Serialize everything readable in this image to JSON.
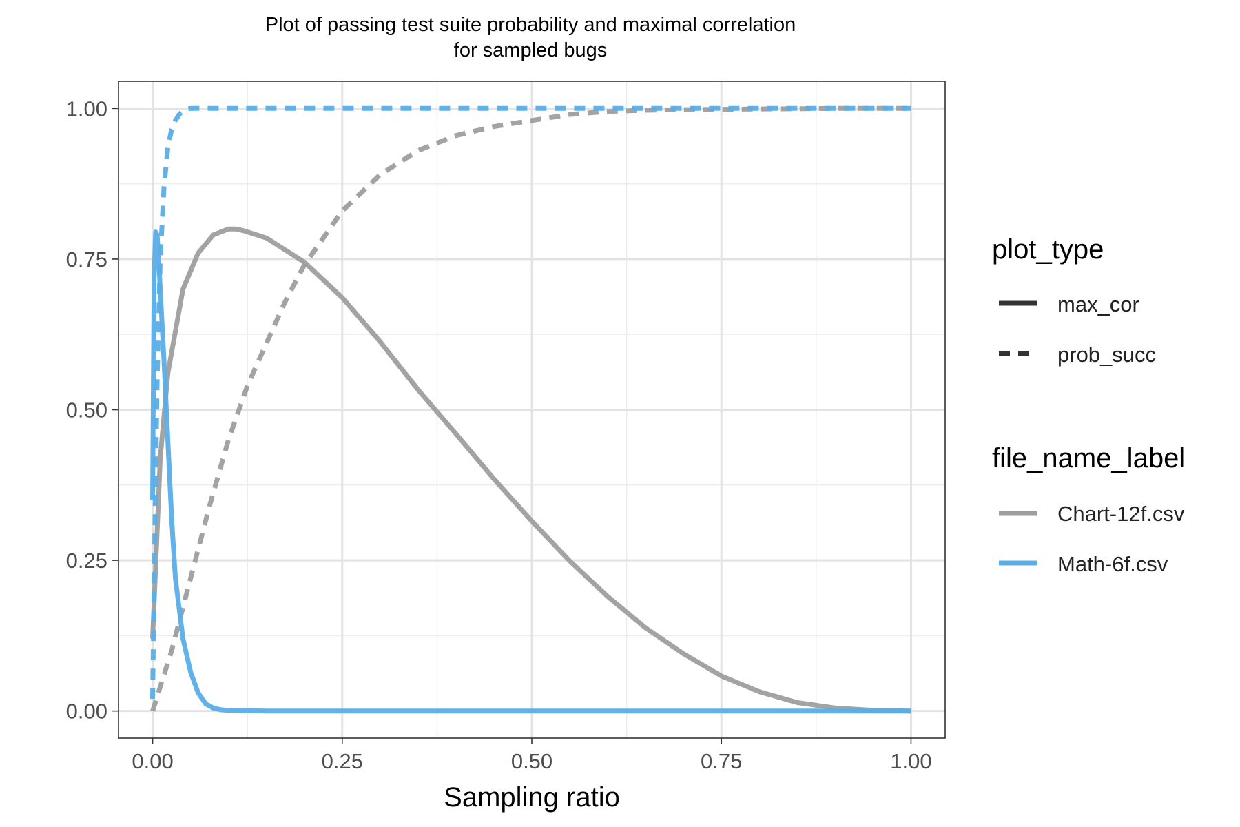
{
  "chart_data": {
    "type": "line",
    "title": "Plot of passing test suite probability and maximal correlation",
    "subtitle": "for sampled bugs",
    "xlabel": "Sampling ratio",
    "ylabel": "",
    "xlim": [
      0,
      1
    ],
    "ylim": [
      0,
      1
    ],
    "x_ticks": [
      "0.00",
      "0.25",
      "0.50",
      "0.75",
      "1.00"
    ],
    "y_ticks": [
      "0.00",
      "0.25",
      "0.50",
      "0.75",
      "1.00"
    ],
    "grid": true,
    "legend_placement": "right",
    "legends": [
      {
        "title": "plot_type",
        "entries": [
          {
            "label": "max_cor",
            "style": "solid"
          },
          {
            "label": "prob_succ",
            "style": "dashed"
          }
        ]
      },
      {
        "title": "file_name_label",
        "entries": [
          {
            "label": "Chart-12f.csv",
            "color": "#9e9e9e"
          },
          {
            "label": "Math-6f.csv",
            "color": "#5aaee8"
          }
        ]
      }
    ],
    "series": [
      {
        "name": "Chart-12f.csv",
        "plot_type": "max_cor",
        "color": "#9e9e9e",
        "style": "solid",
        "x": [
          0,
          0.01,
          0.02,
          0.04,
          0.06,
          0.08,
          0.1,
          0.11,
          0.12,
          0.15,
          0.2,
          0.25,
          0.3,
          0.35,
          0.4,
          0.45,
          0.5,
          0.55,
          0.6,
          0.65,
          0.7,
          0.75,
          0.8,
          0.85,
          0.9,
          0.95,
          1.0
        ],
        "y": [
          0.12,
          0.42,
          0.56,
          0.7,
          0.76,
          0.79,
          0.8,
          0.8,
          0.797,
          0.785,
          0.745,
          0.686,
          0.613,
          0.533,
          0.46,
          0.385,
          0.315,
          0.249,
          0.19,
          0.138,
          0.095,
          0.058,
          0.032,
          0.014,
          0.005,
          0.001,
          0.0
        ]
      },
      {
        "name": "Chart-12f.csv",
        "plot_type": "prob_succ",
        "color": "#9e9e9e",
        "style": "dashed",
        "x": [
          0,
          0.025,
          0.05,
          0.075,
          0.1,
          0.125,
          0.15,
          0.175,
          0.2,
          0.25,
          0.3,
          0.35,
          0.4,
          0.45,
          0.5,
          0.55,
          0.6,
          0.65,
          0.7,
          0.8,
          0.9,
          1.0
        ],
        "y": [
          0.0,
          0.1,
          0.22,
          0.34,
          0.45,
          0.54,
          0.61,
          0.68,
          0.74,
          0.83,
          0.89,
          0.93,
          0.955,
          0.97,
          0.98,
          0.99,
          0.995,
          0.997,
          0.998,
          0.999,
          1.0,
          1.0
        ]
      },
      {
        "name": "Math-6f.csv",
        "plot_type": "max_cor",
        "color": "#5aaee8",
        "style": "solid",
        "x": [
          0,
          0.002,
          0.004,
          0.006,
          0.008,
          0.01,
          0.015,
          0.02,
          0.025,
          0.03,
          0.04,
          0.05,
          0.06,
          0.07,
          0.08,
          0.09,
          0.1,
          0.15,
          0.2,
          0.3,
          0.5,
          1.0
        ],
        "y": [
          0.35,
          0.72,
          0.795,
          0.79,
          0.75,
          0.7,
          0.58,
          0.45,
          0.32,
          0.22,
          0.12,
          0.065,
          0.03,
          0.012,
          0.005,
          0.002,
          0.001,
          0.0,
          0.0,
          0.0,
          0.0,
          0.0
        ]
      },
      {
        "name": "Math-6f.csv",
        "plot_type": "prob_succ",
        "color": "#5aaee8",
        "style": "dashed",
        "x": [
          0,
          0.003,
          0.006,
          0.01,
          0.015,
          0.02,
          0.025,
          0.03,
          0.035,
          0.04,
          0.045,
          0.05,
          0.1,
          0.5,
          1.0
        ],
        "y": [
          0.02,
          0.3,
          0.55,
          0.75,
          0.87,
          0.935,
          0.965,
          0.98,
          0.99,
          0.996,
          0.999,
          1.0,
          1.0,
          1.0,
          1.0
        ]
      }
    ]
  }
}
